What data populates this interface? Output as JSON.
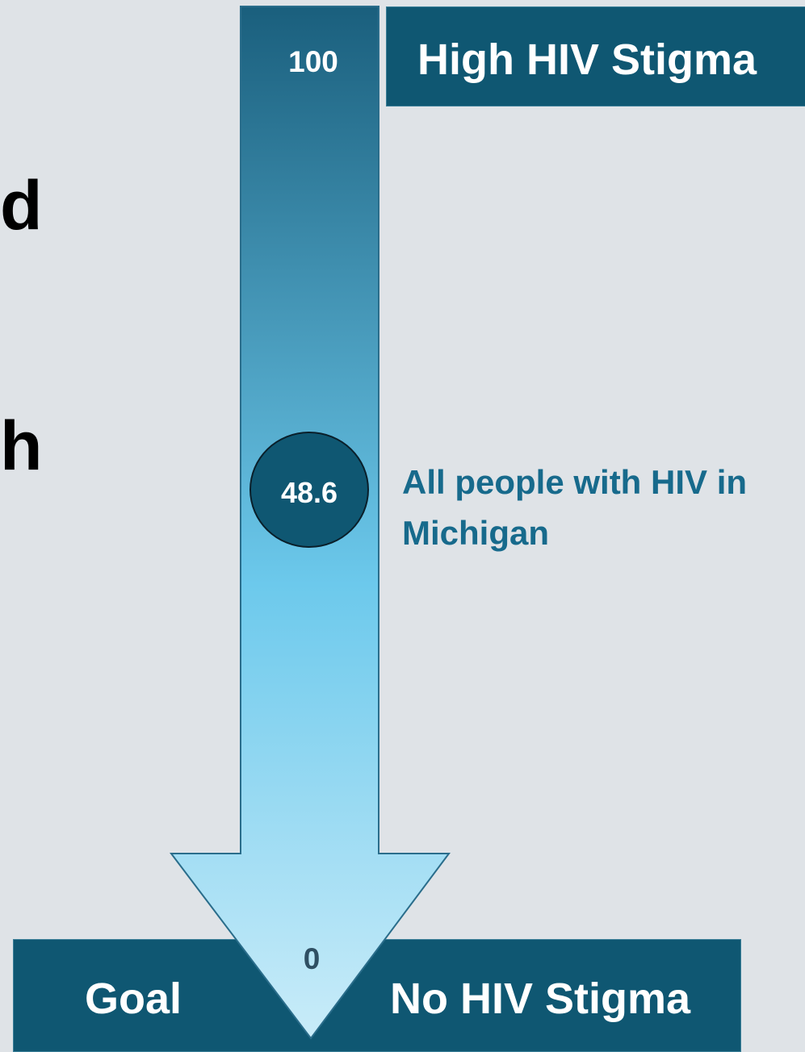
{
  "cut_text": [
    "d",
    "h"
  ],
  "scale": {
    "max_label": "100",
    "min_label": "0",
    "max": 100,
    "min": 0
  },
  "top_label": "High HIV Stigma",
  "bottom_left_label": "Goal",
  "bottom_right_label": "No HIV Stigma",
  "marker": {
    "value": 48.6,
    "value_label": "48.6",
    "description": "All people with HIV in Michigan"
  },
  "colors": {
    "background": "#dfe3e7",
    "dark_teal": "#0f5772",
    "arrow_top": "#1a5f7d",
    "arrow_mid": "#6cc9ec",
    "arrow_bottom": "#c9ecf9",
    "annotation_text": "#176a8c"
  }
}
